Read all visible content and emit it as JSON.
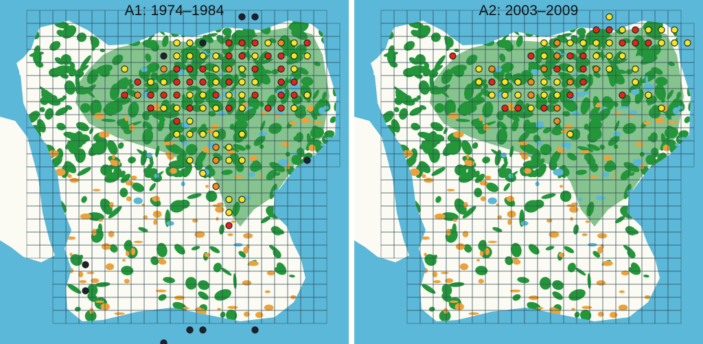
{
  "maps": [
    {
      "title": "A1: 1974–1984",
      "dots": [
        {
          "c": 11,
          "r": 0,
          "k": "k"
        },
        {
          "c": 12,
          "r": 0,
          "k": "k"
        },
        {
          "c": 6,
          "r": 2,
          "k": "y"
        },
        {
          "c": 7,
          "r": 2,
          "k": "y"
        },
        {
          "c": 8,
          "r": 2,
          "k": "k"
        },
        {
          "c": 10,
          "r": 2,
          "k": "r"
        },
        {
          "c": 11,
          "r": 2,
          "k": "r"
        },
        {
          "c": 12,
          "r": 2,
          "k": "r"
        },
        {
          "c": 13,
          "r": 2,
          "k": "y"
        },
        {
          "c": 14,
          "r": 2,
          "k": "o"
        },
        {
          "c": 15,
          "r": 2,
          "k": "y"
        },
        {
          "c": 16,
          "r": 2,
          "k": "r"
        },
        {
          "c": 5,
          "r": 3,
          "k": "k"
        },
        {
          "c": 6,
          "r": 3,
          "k": "y"
        },
        {
          "c": 7,
          "r": 3,
          "k": "y"
        },
        {
          "c": 8,
          "r": 3,
          "k": "y"
        },
        {
          "c": 9,
          "r": 3,
          "k": "y"
        },
        {
          "c": 10,
          "r": 3,
          "k": "r"
        },
        {
          "c": 11,
          "r": 3,
          "k": "r"
        },
        {
          "c": 12,
          "r": 3,
          "k": "y"
        },
        {
          "c": 13,
          "r": 3,
          "k": "r"
        },
        {
          "c": 14,
          "r": 3,
          "k": "r"
        },
        {
          "c": 15,
          "r": 3,
          "k": "y"
        },
        {
          "c": 16,
          "r": 3,
          "k": "y"
        },
        {
          "c": 2,
          "r": 4,
          "k": "y"
        },
        {
          "c": 5,
          "r": 4,
          "k": "o"
        },
        {
          "c": 6,
          "r": 4,
          "k": "r"
        },
        {
          "c": 7,
          "r": 4,
          "k": "r"
        },
        {
          "c": 8,
          "r": 4,
          "k": "r"
        },
        {
          "c": 9,
          "r": 4,
          "k": "y"
        },
        {
          "c": 10,
          "r": 4,
          "k": "o"
        },
        {
          "c": 11,
          "r": 4,
          "k": "y"
        },
        {
          "c": 12,
          "r": 4,
          "k": "r"
        },
        {
          "c": 14,
          "r": 4,
          "k": "r"
        },
        {
          "c": 15,
          "r": 4,
          "k": "y"
        },
        {
          "c": 3,
          "r": 5,
          "k": "r"
        },
        {
          "c": 4,
          "r": 5,
          "k": "y"
        },
        {
          "c": 5,
          "r": 5,
          "k": "y"
        },
        {
          "c": 6,
          "r": 5,
          "k": "r"
        },
        {
          "c": 7,
          "r": 5,
          "k": "r"
        },
        {
          "c": 8,
          "r": 5,
          "k": "r"
        },
        {
          "c": 9,
          "r": 5,
          "k": "y"
        },
        {
          "c": 10,
          "r": 5,
          "k": "r"
        },
        {
          "c": 11,
          "r": 5,
          "k": "y"
        },
        {
          "c": 12,
          "r": 5,
          "k": "y"
        },
        {
          "c": 14,
          "r": 5,
          "k": "r"
        },
        {
          "c": 15,
          "r": 5,
          "k": "r"
        },
        {
          "c": 2,
          "r": 6,
          "k": "r"
        },
        {
          "c": 3,
          "r": 6,
          "k": "o"
        },
        {
          "c": 4,
          "r": 6,
          "k": "r"
        },
        {
          "c": 5,
          "r": 6,
          "k": "r"
        },
        {
          "c": 6,
          "r": 6,
          "k": "r"
        },
        {
          "c": 7,
          "r": 6,
          "k": "y"
        },
        {
          "c": 8,
          "r": 6,
          "k": "y"
        },
        {
          "c": 9,
          "r": 6,
          "k": "r"
        },
        {
          "c": 10,
          "r": 6,
          "k": "y"
        },
        {
          "c": 11,
          "r": 6,
          "k": "y"
        },
        {
          "c": 12,
          "r": 6,
          "k": "r"
        },
        {
          "c": 14,
          "r": 6,
          "k": "r"
        },
        {
          "c": 15,
          "r": 6,
          "k": "r"
        },
        {
          "c": 16,
          "r": 6,
          "k": "y"
        },
        {
          "c": 4,
          "r": 7,
          "k": "r"
        },
        {
          "c": 5,
          "r": 7,
          "k": "y"
        },
        {
          "c": 6,
          "r": 7,
          "k": "y"
        },
        {
          "c": 7,
          "r": 7,
          "k": "r"
        },
        {
          "c": 8,
          "r": 7,
          "k": "y"
        },
        {
          "c": 9,
          "r": 7,
          "k": "y"
        },
        {
          "c": 10,
          "r": 7,
          "k": "r"
        },
        {
          "c": 11,
          "r": 7,
          "k": "y"
        },
        {
          "c": 13,
          "r": 7,
          "k": "r"
        },
        {
          "c": 14,
          "r": 7,
          "k": "r"
        },
        {
          "c": 15,
          "r": 7,
          "k": "y"
        },
        {
          "c": 6,
          "r": 8,
          "k": "r"
        },
        {
          "c": 7,
          "r": 8,
          "k": "y"
        },
        {
          "c": 6,
          "r": 9,
          "k": "y"
        },
        {
          "c": 7,
          "r": 9,
          "k": "y"
        },
        {
          "c": 8,
          "r": 9,
          "k": "y"
        },
        {
          "c": 9,
          "r": 9,
          "k": "y"
        },
        {
          "c": 11,
          "r": 9,
          "k": "y"
        },
        {
          "c": 9,
          "r": 10,
          "k": "o"
        },
        {
          "c": 10,
          "r": 10,
          "k": "y"
        },
        {
          "c": 7,
          "r": 11,
          "k": "y"
        },
        {
          "c": 9,
          "r": 11,
          "k": "o"
        },
        {
          "c": 10,
          "r": 11,
          "k": "y"
        },
        {
          "c": 11,
          "r": 11,
          "k": "y"
        },
        {
          "c": 16,
          "r": 11,
          "k": "k"
        },
        {
          "c": 8,
          "r": 12,
          "k": "y"
        },
        {
          "c": 9,
          "r": 13,
          "k": "o"
        },
        {
          "c": 10,
          "r": 14,
          "k": "y"
        },
        {
          "c": 11,
          "r": 14,
          "k": "y"
        },
        {
          "c": 10,
          "r": 15,
          "k": "y"
        },
        {
          "c": 10,
          "r": 16,
          "k": "r"
        },
        {
          "c": -1,
          "r": 19,
          "k": "k"
        },
        {
          "c": -1,
          "r": 21,
          "k": "k"
        },
        {
          "c": 7,
          "r": 24,
          "k": "k"
        },
        {
          "c": 8,
          "r": 24,
          "k": "k"
        },
        {
          "c": 12,
          "r": 24,
          "k": "k"
        },
        {
          "c": 5,
          "r": 25,
          "k": "k"
        }
      ]
    },
    {
      "title": "A2: 2003–2009",
      "dots": [
        {
          "c": 12,
          "r": 0,
          "k": "y"
        },
        {
          "c": 11,
          "r": 1,
          "k": "r"
        },
        {
          "c": 12,
          "r": 1,
          "k": "r"
        },
        {
          "c": 13,
          "r": 1,
          "k": "y"
        },
        {
          "c": 14,
          "r": 1,
          "k": "r"
        },
        {
          "c": 15,
          "r": 1,
          "k": "y"
        },
        {
          "c": 16,
          "r": 1,
          "k": "y"
        },
        {
          "c": 17,
          "r": 1,
          "k": "y"
        },
        {
          "c": 7,
          "r": 2,
          "k": "y"
        },
        {
          "c": 8,
          "r": 2,
          "k": "o"
        },
        {
          "c": 9,
          "r": 2,
          "k": "y"
        },
        {
          "c": 10,
          "r": 2,
          "k": "y"
        },
        {
          "c": 11,
          "r": 2,
          "k": "y"
        },
        {
          "c": 12,
          "r": 2,
          "k": "y"
        },
        {
          "c": 13,
          "r": 2,
          "k": "r"
        },
        {
          "c": 14,
          "r": 2,
          "k": "r"
        },
        {
          "c": 15,
          "r": 2,
          "k": "r"
        },
        {
          "c": 16,
          "r": 2,
          "k": "y"
        },
        {
          "c": 17,
          "r": 2,
          "k": "y"
        },
        {
          "c": 18,
          "r": 2,
          "k": "y"
        },
        {
          "c": 0,
          "r": 3,
          "k": "r"
        },
        {
          "c": 6,
          "r": 3,
          "k": "r"
        },
        {
          "c": 7,
          "r": 3,
          "k": "y"
        },
        {
          "c": 8,
          "r": 3,
          "k": "o"
        },
        {
          "c": 9,
          "r": 3,
          "k": "r"
        },
        {
          "c": 10,
          "r": 3,
          "k": "r"
        },
        {
          "c": 11,
          "r": 3,
          "k": "y"
        },
        {
          "c": 12,
          "r": 3,
          "k": "y"
        },
        {
          "c": 13,
          "r": 3,
          "k": "y"
        },
        {
          "c": 2,
          "r": 4,
          "k": "y"
        },
        {
          "c": 3,
          "r": 4,
          "k": "o"
        },
        {
          "c": 7,
          "r": 4,
          "k": "o"
        },
        {
          "c": 8,
          "r": 4,
          "k": "r"
        },
        {
          "c": 9,
          "r": 4,
          "k": "y"
        },
        {
          "c": 10,
          "r": 4,
          "k": "r"
        },
        {
          "c": 11,
          "r": 4,
          "k": "o"
        },
        {
          "c": 12,
          "r": 4,
          "k": "y"
        },
        {
          "c": 14,
          "r": 4,
          "k": "y"
        },
        {
          "c": 2,
          "r": 5,
          "k": "y"
        },
        {
          "c": 3,
          "r": 5,
          "k": "r"
        },
        {
          "c": 4,
          "r": 5,
          "k": "y"
        },
        {
          "c": 5,
          "r": 5,
          "k": "y"
        },
        {
          "c": 6,
          "r": 5,
          "k": "o"
        },
        {
          "c": 7,
          "r": 5,
          "k": "y"
        },
        {
          "c": 8,
          "r": 5,
          "k": "y"
        },
        {
          "c": 9,
          "r": 5,
          "k": "o"
        },
        {
          "c": 10,
          "r": 5,
          "k": "r"
        },
        {
          "c": 14,
          "r": 5,
          "k": "y"
        },
        {
          "c": 3,
          "r": 6,
          "k": "y"
        },
        {
          "c": 4,
          "r": 6,
          "k": "y"
        },
        {
          "c": 5,
          "r": 6,
          "k": "y"
        },
        {
          "c": 6,
          "r": 6,
          "k": "o"
        },
        {
          "c": 7,
          "r": 6,
          "k": "y"
        },
        {
          "c": 8,
          "r": 6,
          "k": "y"
        },
        {
          "c": 9,
          "r": 6,
          "k": "r"
        },
        {
          "c": 13,
          "r": 6,
          "k": "r"
        },
        {
          "c": 15,
          "r": 6,
          "k": "y"
        },
        {
          "c": 4,
          "r": 7,
          "k": "r"
        },
        {
          "c": 5,
          "r": 7,
          "k": "r"
        },
        {
          "c": 6,
          "r": 7,
          "k": "y"
        },
        {
          "c": 7,
          "r": 7,
          "k": "r"
        },
        {
          "c": 8,
          "r": 7,
          "k": "o"
        },
        {
          "c": 16,
          "r": 7,
          "k": "y"
        },
        {
          "c": 8,
          "r": 8,
          "k": "o"
        },
        {
          "c": 9,
          "r": 9,
          "k": "y"
        }
      ]
    }
  ],
  "dot_colors": {
    "r": "#e0261c",
    "o": "#ef8a1e",
    "y": "#f2e52a",
    "k": "#1d2230"
  },
  "palette": {
    "sea": "#5bb8d8",
    "land": "#fcfbf3",
    "forest": "#24963a",
    "field": "#eba23c",
    "lake": "#5bb8d8",
    "grid": "#2e4b55"
  }
}
